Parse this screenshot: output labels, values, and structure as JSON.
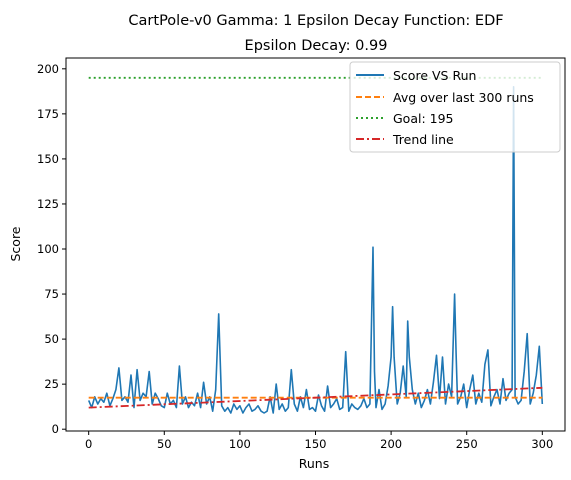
{
  "chart_data": {
    "type": "line",
    "title_line1": "CartPole-v0 Gamma: 1 Epsilon Decay Function: EDF",
    "title_line2": "Epsilon Decay: 0.99",
    "xlabel": "Runs",
    "ylabel": "Score",
    "xlim": [
      -15,
      315
    ],
    "ylim": [
      -1,
      206
    ],
    "x_ticks": [
      0,
      50,
      100,
      150,
      200,
      250,
      300
    ],
    "x_tick_labels": [
      "0",
      "50",
      "100",
      "150",
      "200",
      "250",
      "300"
    ],
    "y_ticks": [
      0,
      25,
      50,
      75,
      100,
      125,
      150,
      175,
      200
    ],
    "y_tick_labels": [
      "0",
      "25",
      "50",
      "75",
      "100",
      "125",
      "150",
      "175",
      "200"
    ],
    "grid": false,
    "legend_position": "top-right",
    "series": [
      {
        "name": "Score VS Run",
        "color": "#1f77b4",
        "style": "solid",
        "x": [
          0,
          2,
          4,
          6,
          8,
          10,
          12,
          14,
          16,
          18,
          20,
          22,
          24,
          26,
          28,
          30,
          32,
          34,
          36,
          38,
          40,
          42,
          44,
          46,
          48,
          50,
          52,
          54,
          56,
          58,
          60,
          62,
          64,
          66,
          68,
          70,
          72,
          74,
          76,
          78,
          80,
          82,
          84,
          86,
          88,
          90,
          92,
          94,
          96,
          98,
          100,
          102,
          104,
          106,
          108,
          110,
          112,
          114,
          116,
          118,
          120,
          122,
          124,
          126,
          128,
          130,
          132,
          134,
          136,
          138,
          140,
          142,
          144,
          146,
          148,
          150,
          152,
          154,
          156,
          158,
          160,
          162,
          164,
          166,
          168,
          170,
          172,
          174,
          176,
          178,
          180,
          182,
          184,
          186,
          188,
          189,
          190,
          192,
          194,
          196,
          198,
          200,
          201,
          202,
          204,
          206,
          208,
          210,
          211,
          212,
          214,
          216,
          218,
          220,
          222,
          224,
          226,
          228,
          230,
          232,
          234,
          236,
          238,
          240,
          242,
          243,
          244,
          246,
          248,
          250,
          252,
          254,
          256,
          258,
          260,
          262,
          264,
          266,
          268,
          270,
          272,
          274,
          276,
          278,
          280,
          281,
          282,
          284,
          286,
          288,
          290,
          292,
          294,
          296,
          298,
          300
        ],
        "y": [
          16,
          12,
          18,
          14,
          17,
          15,
          20,
          13,
          17,
          22,
          34,
          16,
          18,
          15,
          30,
          12,
          33,
          16,
          20,
          18,
          32,
          14,
          20,
          17,
          13,
          12,
          20,
          14,
          16,
          12,
          35,
          14,
          18,
          12,
          15,
          13,
          20,
          12,
          26,
          14,
          18,
          10,
          22,
          64,
          13,
          10,
          12,
          9,
          14,
          11,
          13,
          9,
          12,
          14,
          10,
          11,
          13,
          10,
          9,
          10,
          18,
          9,
          25,
          11,
          14,
          10,
          12,
          33,
          14,
          10,
          18,
          12,
          22,
          11,
          12,
          10,
          19,
          13,
          10,
          24,
          12,
          14,
          17,
          11,
          12,
          43,
          10,
          14,
          12,
          11,
          13,
          17,
          12,
          14,
          101,
          32,
          12,
          22,
          11,
          14,
          24,
          40,
          68,
          40,
          14,
          20,
          35,
          18,
          60,
          40,
          22,
          14,
          20,
          12,
          16,
          22,
          14,
          26,
          41,
          17,
          40,
          14,
          25,
          18,
          75,
          42,
          14,
          18,
          25,
          12,
          22,
          30,
          14,
          20,
          15,
          36,
          44,
          13,
          18,
          22,
          14,
          28,
          16,
          20,
          22,
          190,
          18,
          14,
          16,
          32,
          53,
          14,
          20,
          30,
          46,
          14
        ]
      },
      {
        "name": "Avg over last 300 runs",
        "color": "#ff7f0e",
        "style": "dashed",
        "x": [
          0,
          300
        ],
        "y": [
          17.5,
          17.5
        ]
      },
      {
        "name": "Goal: 195",
        "color": "#2ca02c",
        "style": "dotted",
        "x": [
          0,
          300
        ],
        "y": [
          195,
          195
        ]
      },
      {
        "name": "Trend line",
        "color": "#d62728",
        "style": "dashdot",
        "x": [
          0,
          300
        ],
        "y": [
          12,
          23
        ]
      }
    ]
  }
}
